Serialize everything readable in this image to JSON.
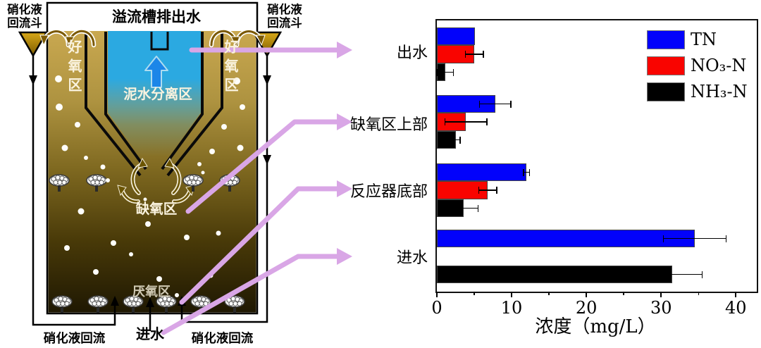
{
  "diagram": {
    "labels": {
      "overflow_outlet": "溢流槽排出水",
      "hopper_left": "硝化液\n回流斗",
      "hopper_right": "硝化液\n回流斗",
      "aerobic_left": "好氧区",
      "aerobic_right": "好氧区",
      "separation_zone": "泥水分离区",
      "anoxic_zone": "缺氧区",
      "anaerobic_zone": "厌氧区",
      "influent": "进水",
      "reflux_left": "硝化液回流",
      "reflux_right": "硝化液回流"
    },
    "colors": {
      "water_top": "#C9A850",
      "water_bottom": "#1F1802",
      "clarifier_blue": "#2BA9E1",
      "hopper_gold": "#C89410",
      "callout_arrow_pink": "#D9A6E6",
      "up_arrow_blue": "#1C86E8"
    }
  },
  "chart_data": {
    "type": "bar",
    "orientation": "horizontal",
    "categories": [
      "出水",
      "缺氧区上部",
      "反应器底部",
      "进水"
    ],
    "series": [
      {
        "name": "TN",
        "color": "#0202FB",
        "values": [
          5.1,
          7.8,
          12.0,
          34.5
        ],
        "errors": [
          null,
          2.1,
          0.4,
          4.2
        ]
      },
      {
        "name": "NO₃-N",
        "color": "#F90400",
        "values": [
          5.0,
          3.9,
          6.8,
          null
        ],
        "errors": [
          1.2,
          2.8,
          1.2,
          null
        ]
      },
      {
        "name": "NH₃-N",
        "color": "#000000",
        "values": [
          1.1,
          2.5,
          3.6,
          31.5
        ],
        "errors": [
          1.1,
          0.6,
          1.9,
          4.0
        ]
      }
    ],
    "xlabel": "浓度（mg/L）",
    "xlim": [
      0,
      42.8
    ],
    "xticks": [
      0,
      10,
      20,
      30,
      40
    ],
    "xminor": [
      5,
      15,
      25,
      35
    ],
    "grid": false,
    "legend_position": "upper-right"
  }
}
